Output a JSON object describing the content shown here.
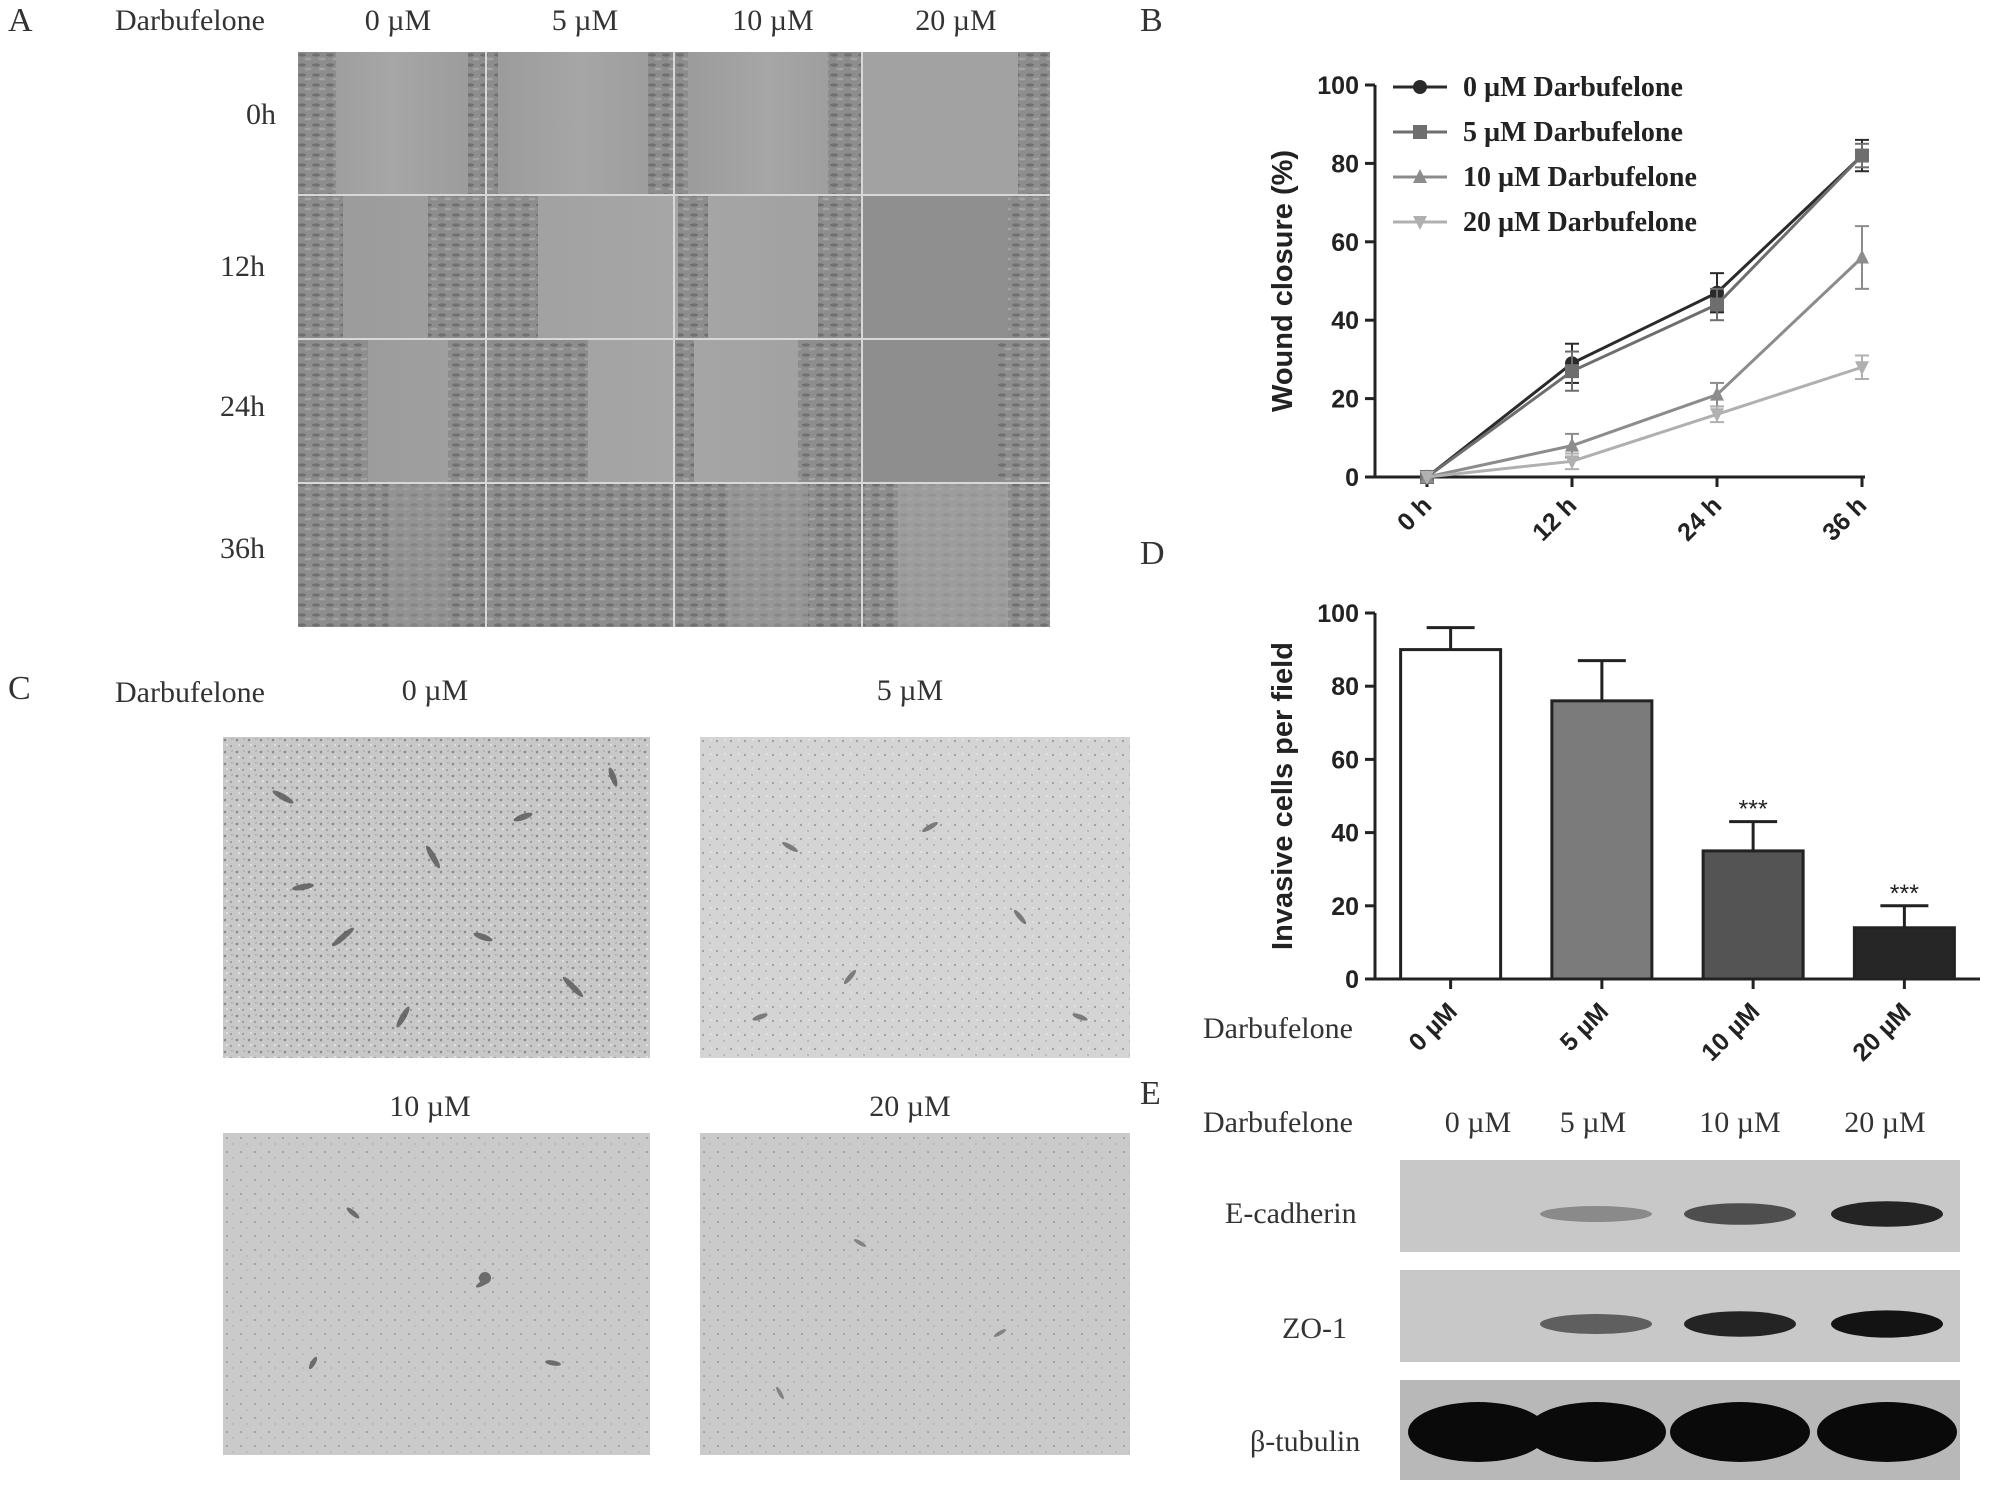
{
  "panels": {
    "A": {
      "letter": "A",
      "drug_label": "Darbufelone",
      "columns": [
        "0 µM",
        "5 µM",
        "10 µM",
        "20 µM"
      ],
      "rows": [
        "0h",
        "12h",
        "24h",
        "36h"
      ]
    },
    "B": {
      "letter": "B"
    },
    "C": {
      "letter": "C",
      "drug_label": "Darbufelone",
      "top_labels": [
        "0 µM",
        "5 µM"
      ],
      "bottom_labels": [
        "10 µM",
        "20 µM"
      ]
    },
    "D": {
      "letter": "D",
      "drug_label": "Darbufelone"
    },
    "E": {
      "letter": "E",
      "drug_label": "Darbufelone",
      "columns": [
        "0 µM",
        "5 µM",
        "10 µM",
        "20 µM"
      ],
      "rows": [
        "E-cadherin",
        "ZO-1",
        "β-tubulin"
      ],
      "band_intensity": {
        "E-cadherin": [
          0.0,
          0.25,
          0.6,
          0.85
        ],
        "ZO-1": [
          0.0,
          0.5,
          0.85,
          0.95
        ],
        "β-tubulin": [
          1.0,
          1.0,
          1.0,
          1.0
        ]
      }
    }
  },
  "chart_data": [
    {
      "id": "B",
      "type": "line",
      "title": "",
      "ylabel": "Wound closure (%)",
      "xlabel": "",
      "categories": [
        "0 h",
        "12 h",
        "24 h",
        "36 h"
      ],
      "ylim": [
        0,
        100
      ],
      "yticks": [
        0,
        20,
        40,
        60,
        80,
        100
      ],
      "legend_position": "top-left",
      "series": [
        {
          "name": "0 µM Darbufelone",
          "values": [
            0,
            29,
            47,
            82
          ],
          "errors": [
            0,
            5,
            5,
            4
          ],
          "color": "#2a2a2a",
          "marker": "circle"
        },
        {
          "name": "5 µM Darbufelone",
          "values": [
            0,
            27,
            44,
            82
          ],
          "errors": [
            0,
            5,
            4,
            3
          ],
          "color": "#6e6e6e",
          "marker": "square"
        },
        {
          "name": "10 µM Darbufelone",
          "values": [
            0,
            8,
            21,
            56
          ],
          "errors": [
            0,
            3,
            3,
            8
          ],
          "color": "#8c8c8c",
          "marker": "triangle-up"
        },
        {
          "name": "20 µM Darbufelone",
          "values": [
            0,
            4,
            16,
            28
          ],
          "errors": [
            0,
            2,
            2,
            3
          ],
          "color": "#b0b0b0",
          "marker": "triangle-down"
        }
      ]
    },
    {
      "id": "D",
      "type": "bar",
      "title": "",
      "ylabel": "Invasive cells per field",
      "xlabel": "",
      "categories": [
        "0 µM",
        "5 µM",
        "10 µM",
        "20 µM"
      ],
      "values": [
        90,
        76,
        35,
        14
      ],
      "errors": [
        6,
        11,
        8,
        6
      ],
      "annotations": [
        "",
        "",
        "***",
        "***"
      ],
      "colors": [
        "#ffffff",
        "#7b7b7b",
        "#545454",
        "#262626"
      ],
      "ylim": [
        0,
        100
      ],
      "yticks": [
        0,
        20,
        40,
        60,
        80,
        100
      ]
    }
  ]
}
